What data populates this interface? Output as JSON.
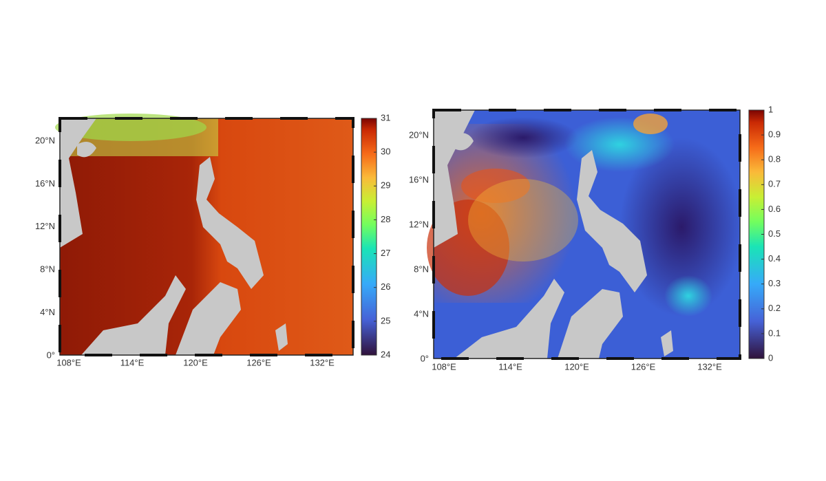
{
  "panels": [
    {
      "lat_labels": [
        "0°",
        "4°N",
        "8°N",
        "12°N",
        "16°N",
        "20°N"
      ],
      "lon_labels": [
        "108°E",
        "114°E",
        "120°E",
        "126°E",
        "132°E"
      ],
      "colorbar": {
        "range": [
          24,
          31
        ],
        "ticks": [
          24,
          25,
          26,
          27,
          28,
          29,
          30,
          31
        ]
      }
    },
    {
      "lat_labels": [
        "0°",
        "4°N",
        "8°N",
        "12°N",
        "16°N",
        "20°N"
      ],
      "lon_labels": [
        "108°E",
        "114°E",
        "120°E",
        "126°E",
        "132°E"
      ],
      "colorbar": {
        "range": [
          0,
          1
        ],
        "ticks": [
          0,
          0.1,
          0.2,
          0.3,
          0.4,
          0.5,
          0.6,
          0.7,
          0.8,
          0.9,
          1
        ]
      }
    }
  ]
}
